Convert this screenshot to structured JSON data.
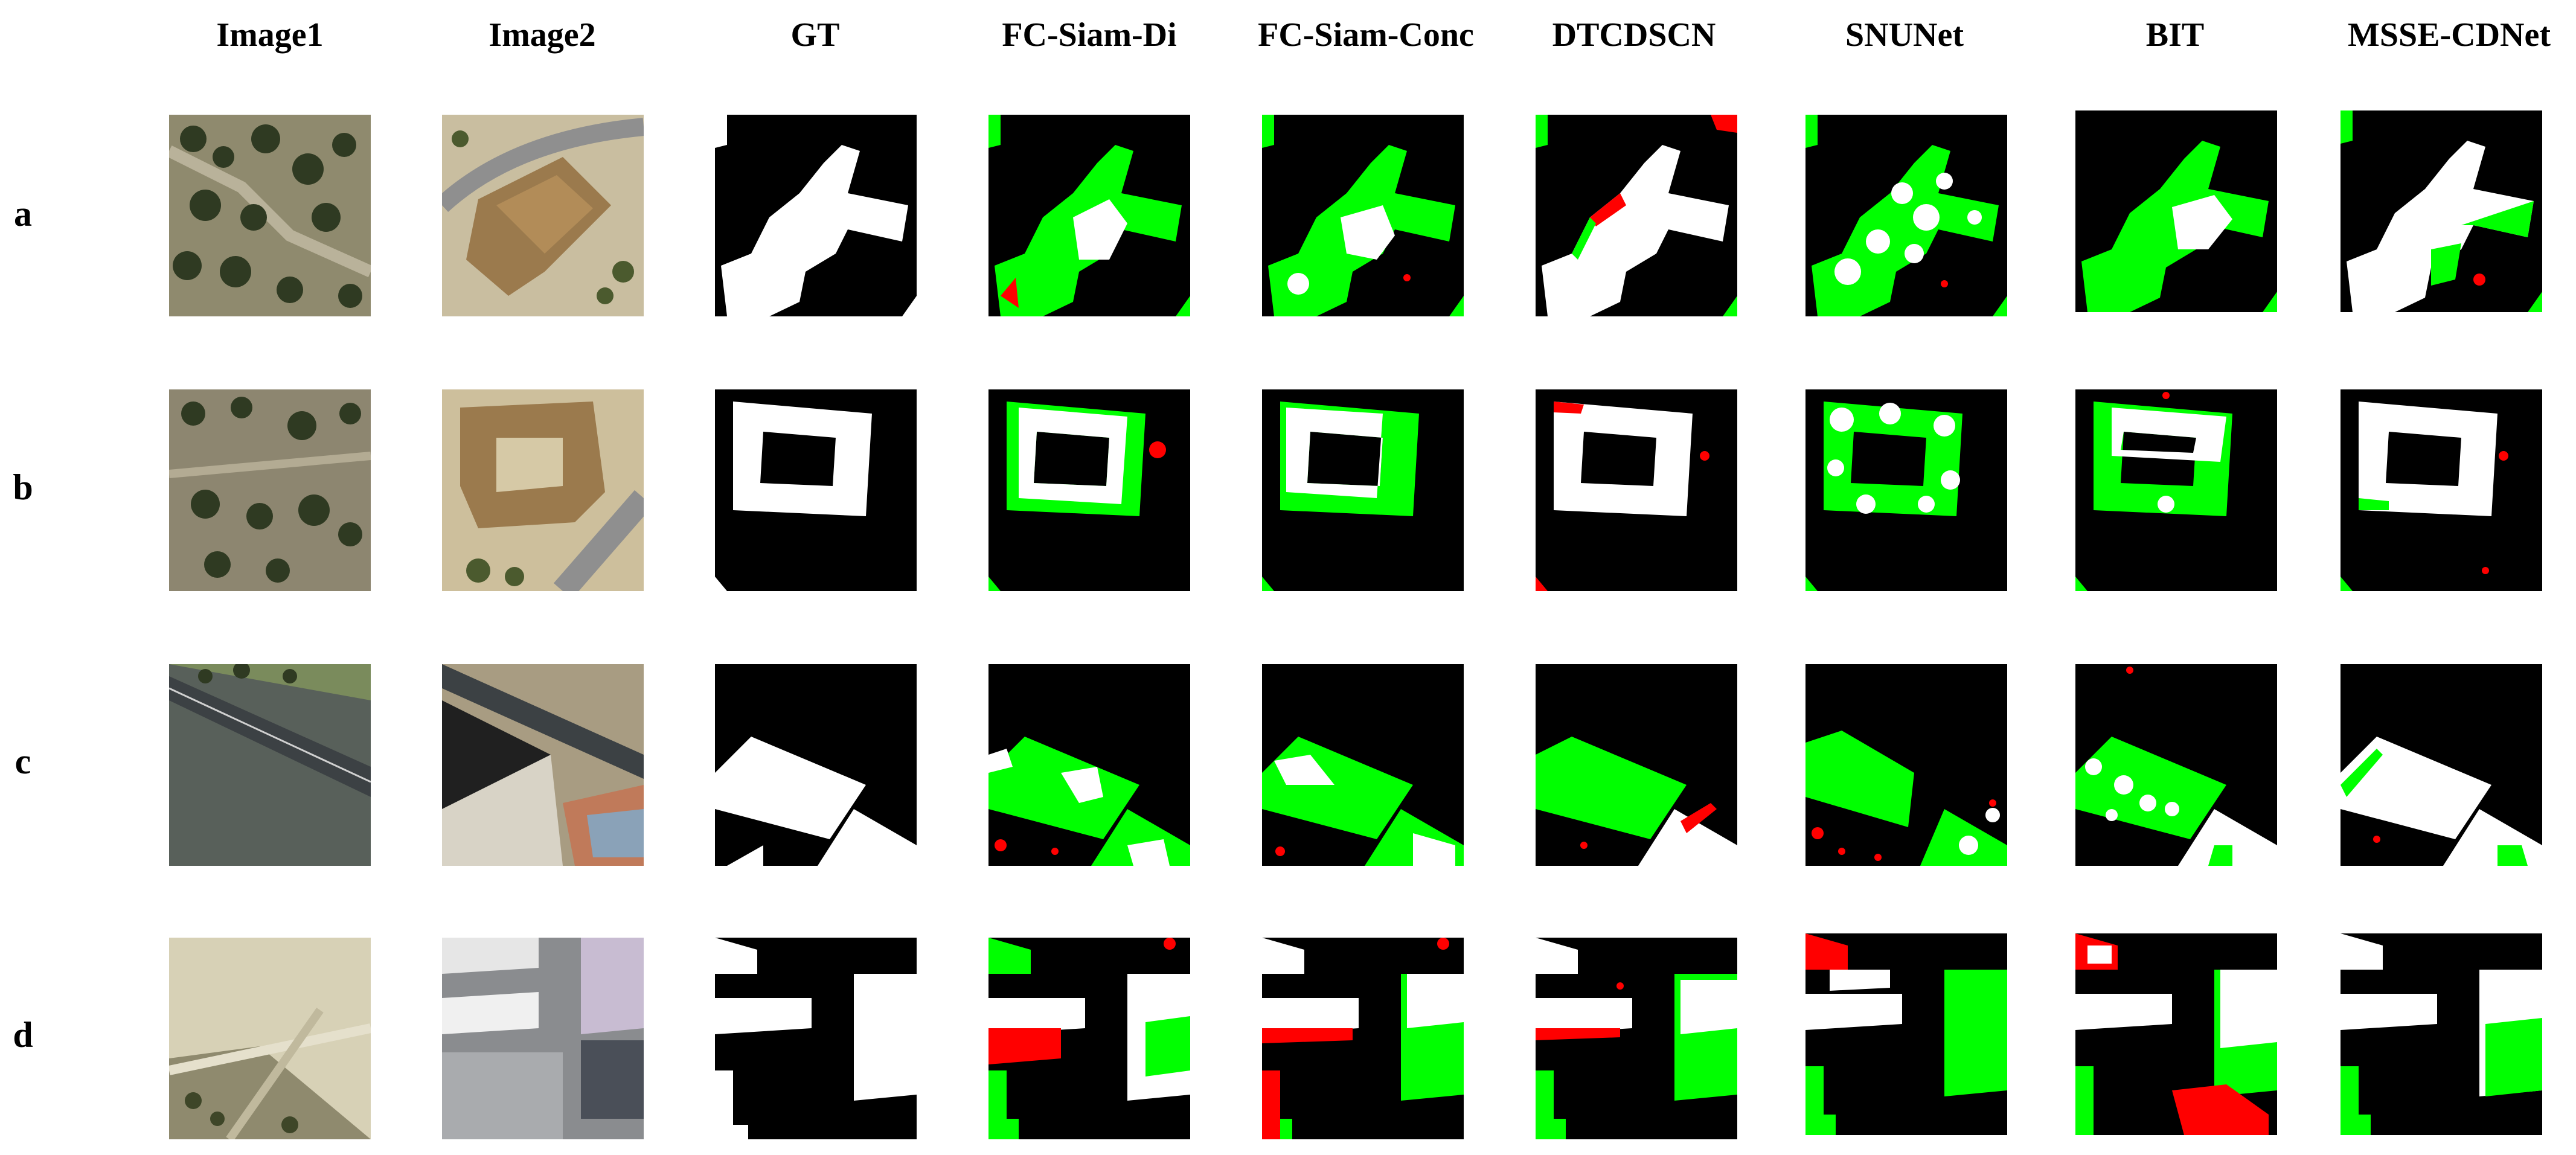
{
  "columns": [
    "Image1",
    "Image2",
    "GT",
    "FC-Siam-Di",
    "FC-Siam-Conc",
    "DTCDSCN",
    "SNUNet",
    "BIT",
    "MSSE-CDNet"
  ],
  "rows": [
    "a",
    "b",
    "c",
    "d"
  ],
  "colors": {
    "background": "#ffffff",
    "mask_black": "#000000",
    "true_positive_white": "#ffffff",
    "false_negative_green": "#00ff00",
    "false_positive_red": "#ff0000"
  }
}
